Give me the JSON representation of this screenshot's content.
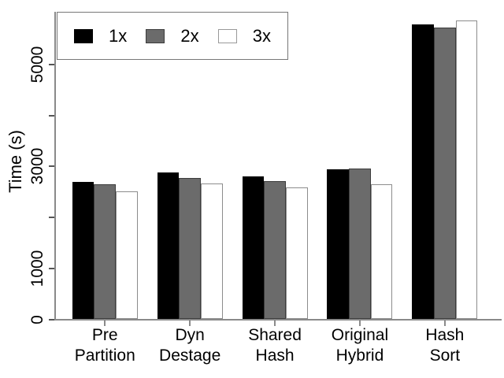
{
  "chart_data": {
    "type": "bar",
    "title": "",
    "xlabel": "",
    "ylabel": "Time (s)",
    "categories": [
      "Pre Partition",
      "Dyn Destage",
      "Shared Hash",
      "Original Hybrid",
      "Hash Sort"
    ],
    "series": [
      {
        "name": "1x",
        "color": "#000000",
        "border": "#000000",
        "values": [
          2695,
          2890,
          2805,
          2945,
          5790
        ]
      },
      {
        "name": "2x",
        "color": "#6b6b6b",
        "border": "#3c3c3c",
        "values": [
          2650,
          2780,
          2715,
          2955,
          5720
        ]
      },
      {
        "name": "3x",
        "color": "#ffffff",
        "border": "#8c8c8c",
        "values": [
          2510,
          2665,
          2590,
          2645,
          5860
        ]
      }
    ],
    "ylim": [
      0,
      6040
    ],
    "yticks": [
      0,
      1000,
      2000,
      3000,
      4000,
      5000
    ],
    "ytick_labels": [
      "0",
      "1000",
      "",
      "3000",
      "",
      "5000"
    ],
    "legend_position": "top-left",
    "grid": false,
    "colors": {
      "axis": "#8a8a8a",
      "tick": "#555555",
      "text": "#000000",
      "background": "#ffffff"
    }
  }
}
